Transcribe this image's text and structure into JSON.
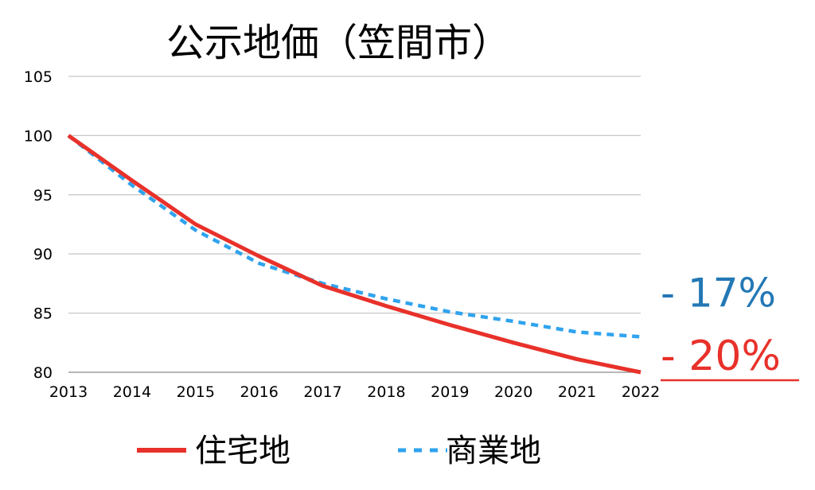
{
  "chart_data": {
    "type": "line",
    "title": "公示地価（笠間市）",
    "xlabel": "",
    "ylabel": "",
    "x": [
      "2013",
      "2014",
      "2015",
      "2016",
      "2017",
      "2018",
      "2019",
      "2020",
      "2021",
      "2022"
    ],
    "ylim": [
      80,
      105
    ],
    "yticks": [
      80,
      85,
      90,
      95,
      100,
      105
    ],
    "grid": true,
    "legend_position": "bottom",
    "series": [
      {
        "name": "住宅地",
        "color": "#e8312a",
        "line_style": "solid",
        "values": [
          100,
          96.2,
          92.5,
          89.8,
          87.3,
          85.6,
          84.0,
          82.5,
          81.1,
          80.0
        ]
      },
      {
        "name": "商業地",
        "color": "#2fa3ee",
        "line_style": "dashed",
        "values": [
          100,
          95.8,
          92.0,
          89.2,
          87.5,
          86.2,
          85.1,
          84.3,
          83.4,
          83.0
        ]
      }
    ],
    "annotations": [
      {
        "text": "- 17%",
        "series": "商業地",
        "color": "#2378b5",
        "underline": false
      },
      {
        "text": "- 20%",
        "series": "住宅地",
        "color": "#e8312a",
        "underline": true
      }
    ]
  }
}
